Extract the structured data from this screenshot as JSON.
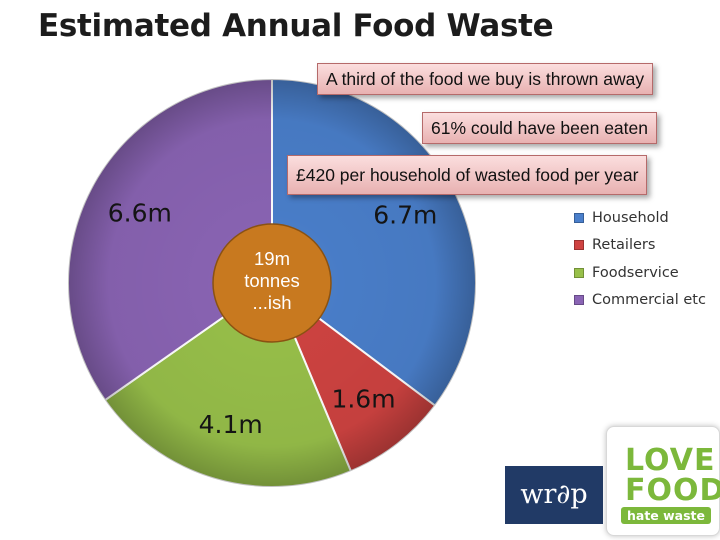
{
  "slide": {
    "title": "Estimated Annual Food Waste",
    "callouts": [
      "A third of the food we buy is thrown away",
      "61% could have been eaten",
      "£420 per household of wasted food per year"
    ],
    "center_text": [
      "19m",
      "tonnes",
      "...ish"
    ],
    "logos": {
      "wrap": "wr∂p",
      "love_food": [
        "LOVE",
        "FOOD"
      ],
      "hate_waste": "hate waste"
    }
  },
  "chart_data": {
    "type": "pie",
    "title": "Estimated Annual Food Waste",
    "categories": [
      "Household",
      "Retailers",
      "Foodservice",
      "Commercial etc"
    ],
    "values": [
      6.7,
      1.6,
      4.1,
      6.6
    ],
    "labels": [
      "6.7m",
      "1.6m",
      "4.1m",
      "6.6m"
    ],
    "colors": [
      "#4a7fcb",
      "#cf4341",
      "#98c04a",
      "#8a64b4"
    ],
    "legend_position": "right",
    "center_label": "19m tonnes ...ish"
  },
  "colors": {
    "center_circle": "#c8791f",
    "callout_border": "#b56a6a",
    "logo_green": "#7cb83b",
    "logo_navy": "#213a66"
  }
}
